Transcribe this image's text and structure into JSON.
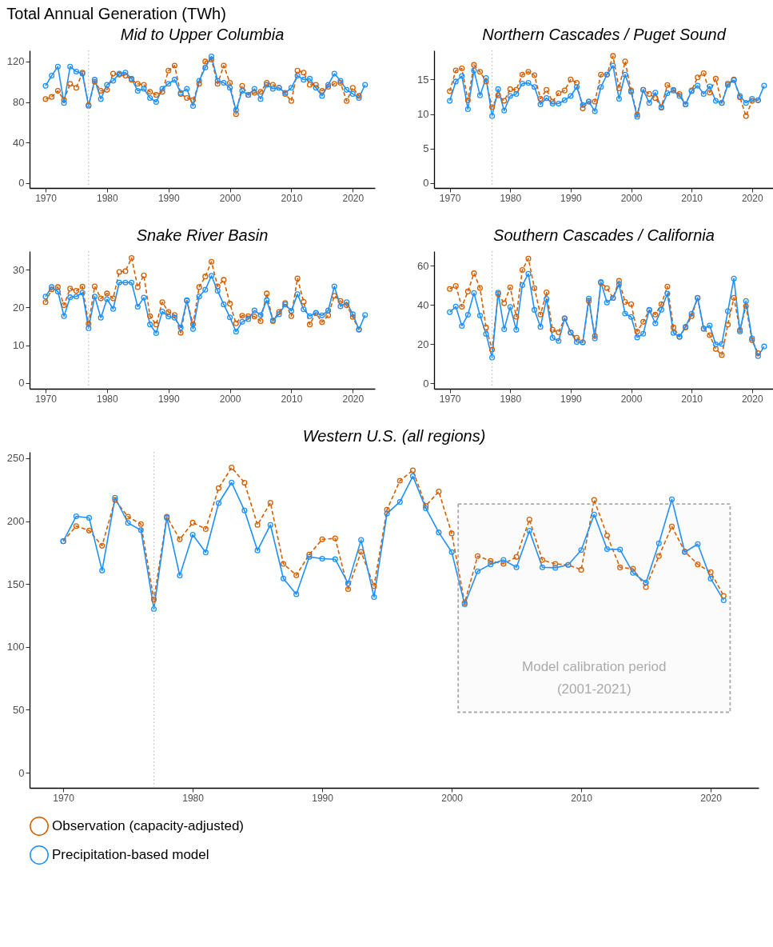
{
  "chart_data": [
    {
      "type": "line",
      "title": "Mid to Upper Columbia",
      "annotations": [
        "Total Annual Generation (TWh)"
      ],
      "x": [
        1970,
        1971,
        1972,
        1973,
        1974,
        1975,
        1976,
        1977,
        1978,
        1979,
        1980,
        1981,
        1982,
        1983,
        1984,
        1985,
        1986,
        1987,
        1988,
        1989,
        1990,
        1991,
        1992,
        1993,
        1994,
        1995,
        1996,
        1997,
        1998,
        1999,
        2000,
        2001,
        2002,
        2003,
        2004,
        2005,
        2006,
        2007,
        2008,
        2009,
        2010,
        2011,
        2012,
        2013,
        2014,
        2015,
        2016,
        2017,
        2018,
        2019,
        2020,
        2021,
        2022
      ],
      "xlim": [
        1967.4,
        2023.6
      ],
      "xticks": [
        1970,
        1980,
        1990,
        2000,
        2010,
        2020
      ],
      "ylim": [
        -5,
        131
      ],
      "yticks": [
        0,
        40,
        80,
        120
      ],
      "grid": false,
      "marker": "circle",
      "ref_lines": [
        {
          "axis": "x",
          "value": 1977,
          "color": "#bbbbbb",
          "line_style": "dotted"
        }
      ],
      "series": [
        {
          "color": "#d55e00",
          "line_style": "dashed",
          "x": [
            1970,
            1971,
            1972,
            1973,
            1974,
            1975,
            1976,
            1977,
            1978,
            1979,
            1980,
            1981,
            1982,
            1983,
            1984,
            1985,
            1986,
            1987,
            1988,
            1989,
            1990,
            1991,
            1992,
            1993,
            1994,
            1995,
            1996,
            1997,
            1998,
            1999,
            2000,
            2001,
            2002,
            2003,
            2004,
            2005,
            2006,
            2007,
            2008,
            2009,
            2010,
            2011,
            2012,
            2013,
            2014,
            2015,
            2016,
            2017,
            2018,
            2019,
            2020,
            2021
          ],
          "values": [
            83,
            85,
            91,
            82,
            98,
            94,
            109,
            77,
            100,
            91,
            92,
            108,
            107,
            106,
            102,
            98,
            97,
            90,
            87,
            90,
            111,
            116,
            88,
            84,
            82,
            98,
            120,
            122,
            98,
            116,
            99,
            68,
            96,
            87,
            89,
            90,
            99,
            97,
            94,
            88,
            81,
            111,
            109,
            97,
            97,
            91,
            95,
            98,
            99,
            81,
            94,
            86
          ]
        },
        {
          "color": "#1e90ff",
          "line_style": "solid",
          "values": [
            96,
            106,
            115,
            79,
            115,
            110,
            108,
            76,
            102,
            83,
            97,
            101,
            108,
            109,
            103,
            91,
            93,
            84,
            80,
            93,
            98,
            102,
            89,
            93,
            76,
            101,
            114,
            125,
            101,
            99,
            94,
            72,
            91,
            87,
            93,
            83,
            97,
            93,
            94,
            89,
            94,
            106,
            102,
            103,
            94,
            86,
            97,
            108,
            101,
            92,
            88,
            84,
            97
          ]
        }
      ]
    },
    {
      "type": "line",
      "title": "Northern Cascades / Puget Sound",
      "x": [
        1970,
        1971,
        1972,
        1973,
        1974,
        1975,
        1976,
        1977,
        1978,
        1979,
        1980,
        1981,
        1982,
        1983,
        1984,
        1985,
        1986,
        1987,
        1988,
        1989,
        1990,
        1991,
        1992,
        1993,
        1994,
        1995,
        1996,
        1997,
        1998,
        1999,
        2000,
        2001,
        2002,
        2003,
        2004,
        2005,
        2006,
        2007,
        2008,
        2009,
        2010,
        2011,
        2012,
        2013,
        2014,
        2015,
        2016,
        2017,
        2018,
        2019,
        2020,
        2021,
        2022
      ],
      "xlim": [
        1967.4,
        2023.6
      ],
      "xticks": [
        1970,
        1980,
        1990,
        2000,
        2010,
        2020
      ],
      "ylim": [
        -0.7,
        19.2
      ],
      "yticks": [
        0,
        5,
        10,
        15
      ],
      "grid": false,
      "marker": "circle",
      "ref_lines": [
        {
          "axis": "x",
          "value": 1977,
          "color": "#bbbbbb",
          "line_style": "dotted"
        }
      ],
      "series": [
        {
          "color": "#d55e00",
          "line_style": "dashed",
          "x": [
            1970,
            1971,
            1972,
            1973,
            1974,
            1975,
            1976,
            1977,
            1978,
            1979,
            1980,
            1981,
            1982,
            1983,
            1984,
            1985,
            1986,
            1987,
            1988,
            1989,
            1990,
            1991,
            1992,
            1993,
            1994,
            1995,
            1996,
            1997,
            1998,
            1999,
            2000,
            2001,
            2002,
            2003,
            2004,
            2005,
            2006,
            2007,
            2008,
            2009,
            2010,
            2011,
            2012,
            2013,
            2014,
            2015,
            2016,
            2017,
            2018,
            2019,
            2020,
            2021
          ],
          "values": [
            13.3,
            16.3,
            16.6,
            12.0,
            17.1,
            16.1,
            14.7,
            11.0,
            12.7,
            11.9,
            13.6,
            13.5,
            15.7,
            16.1,
            15.6,
            12.2,
            13.5,
            11.8,
            13.0,
            13.4,
            15.0,
            14.5,
            10.8,
            11.8,
            11.8,
            15.7,
            15.7,
            18.4,
            13.7,
            17.6,
            13.4,
            9.9,
            13.5,
            12.9,
            12.3,
            11.0,
            14.2,
            13.5,
            12.9,
            11.4,
            13.4,
            15.3,
            15.9,
            13.1,
            15.1,
            11.6,
            14.4,
            15.0,
            12.4,
            9.7,
            11.9,
            12.0
          ]
        },
        {
          "color": "#1e90ff",
          "line_style": "solid",
          "values": [
            11.9,
            14.7,
            15.5,
            10.7,
            16.3,
            12.7,
            15.2,
            9.7,
            13.6,
            10.5,
            12.6,
            12.9,
            14.4,
            14.5,
            13.9,
            11.4,
            12.3,
            11.5,
            11.5,
            12.0,
            12.6,
            13.9,
            11.3,
            11.8,
            10.4,
            13.9,
            15.7,
            17.0,
            12.2,
            15.7,
            13.2,
            9.6,
            13.5,
            11.6,
            13.1,
            10.9,
            13.0,
            13.4,
            12.6,
            11.4,
            13.3,
            14.1,
            12.9,
            14.0,
            11.9,
            11.6,
            14.2,
            14.9,
            12.6,
            11.6,
            12.2,
            12.0,
            14.1
          ]
        }
      ]
    },
    {
      "type": "line",
      "title": "Snake River Basin",
      "x": [
        1970,
        1971,
        1972,
        1973,
        1974,
        1975,
        1976,
        1977,
        1978,
        1979,
        1980,
        1981,
        1982,
        1983,
        1984,
        1985,
        1986,
        1987,
        1988,
        1989,
        1990,
        1991,
        1992,
        1993,
        1994,
        1995,
        1996,
        1997,
        1998,
        1999,
        2000,
        2001,
        2002,
        2003,
        2004,
        2005,
        2006,
        2007,
        2008,
        2009,
        2010,
        2011,
        2012,
        2013,
        2014,
        2015,
        2016,
        2017,
        2018,
        2019,
        2020,
        2021,
        2022
      ],
      "xlim": [
        1967.4,
        2023.6
      ],
      "xticks": [
        1970,
        1980,
        1990,
        2000,
        2010,
        2020
      ],
      "ylim": [
        -1.5,
        34.9
      ],
      "yticks": [
        0,
        10,
        20,
        30
      ],
      "grid": false,
      "marker": "circle",
      "ref_lines": [
        {
          "axis": "x",
          "value": 1977,
          "color": "#bbbbbb",
          "line_style": "dotted"
        }
      ],
      "series": [
        {
          "color": "#d55e00",
          "line_style": "dashed",
          "x": [
            1970,
            1971,
            1972,
            1973,
            1974,
            1975,
            1976,
            1977,
            1978,
            1979,
            1980,
            1981,
            1982,
            1983,
            1984,
            1985,
            1986,
            1987,
            1988,
            1989,
            1990,
            1991,
            1992,
            1993,
            1994,
            1995,
            1996,
            1997,
            1998,
            1999,
            2000,
            2001,
            2002,
            2003,
            2004,
            2005,
            2006,
            2007,
            2008,
            2009,
            2010,
            2011,
            2012,
            2013,
            2014,
            2015,
            2016,
            2017,
            2018,
            2019,
            2020,
            2021
          ],
          "values": [
            21.4,
            24.8,
            25.4,
            20.6,
            25.0,
            24.4,
            25.5,
            15.7,
            25.6,
            22.4,
            23.7,
            22.4,
            29.4,
            29.6,
            33.1,
            25.4,
            28.5,
            17.7,
            15.5,
            21.4,
            18.8,
            18.0,
            13.3,
            21.8,
            15.6,
            25.4,
            28.2,
            32.1,
            25.6,
            27.3,
            21.0,
            15.8,
            17.8,
            17.7,
            17.6,
            16.4,
            23.7,
            16.4,
            18.8,
            21.2,
            17.7,
            27.7,
            21.5,
            15.5,
            18.5,
            16.1,
            17.9,
            23.1,
            21.7,
            20.6,
            17.5,
            14.1
          ]
        },
        {
          "color": "#1e90ff",
          "line_style": "solid",
          "values": [
            22.9,
            25.4,
            24.2,
            17.7,
            22.7,
            22.9,
            23.9,
            14.5,
            22.9,
            17.3,
            22.2,
            19.6,
            26.6,
            26.6,
            26.6,
            20.2,
            22.6,
            15.5,
            13.2,
            18.9,
            17.6,
            17.3,
            14.7,
            21.9,
            14.3,
            22.9,
            24.7,
            28.4,
            24.4,
            20.8,
            17.4,
            13.6,
            16.2,
            16.9,
            19.2,
            18.0,
            21.9,
            16.6,
            18.2,
            20.8,
            19.1,
            23.5,
            19.5,
            17.7,
            18.6,
            17.9,
            19.2,
            25.6,
            20.3,
            21.4,
            18.2,
            14.2,
            18.0
          ]
        }
      ]
    },
    {
      "type": "line",
      "title": "Southern Cascades / California",
      "x": [
        1970,
        1971,
        1972,
        1973,
        1974,
        1975,
        1976,
        1977,
        1978,
        1979,
        1980,
        1981,
        1982,
        1983,
        1984,
        1985,
        1986,
        1987,
        1988,
        1989,
        1990,
        1991,
        1992,
        1993,
        1994,
        1995,
        1996,
        1997,
        1998,
        1999,
        2000,
        2001,
        2002,
        2003,
        2004,
        2005,
        2006,
        2007,
        2008,
        2009,
        2010,
        2011,
        2012,
        2013,
        2014,
        2015,
        2016,
        2017,
        2018,
        2019,
        2020,
        2021,
        2022
      ],
      "xlim": [
        1967.4,
        2023.6
      ],
      "xticks": [
        1970,
        1980,
        1990,
        2000,
        2010,
        2020
      ],
      "ylim": [
        -2.8,
        67.5
      ],
      "yticks": [
        0,
        20,
        40,
        60
      ],
      "grid": false,
      "marker": "circle",
      "ref_lines": [
        {
          "axis": "x",
          "value": 1977,
          "color": "#bbbbbb",
          "line_style": "dotted"
        }
      ],
      "series": [
        {
          "color": "#d55e00",
          "line_style": "dashed",
          "x": [
            1970,
            1971,
            1972,
            1973,
            1974,
            1975,
            1976,
            1977,
            1978,
            1979,
            1980,
            1981,
            1982,
            1983,
            1984,
            1985,
            1986,
            1987,
            1988,
            1989,
            1990,
            1991,
            1992,
            1993,
            1994,
            1995,
            1996,
            1997,
            1998,
            1999,
            2000,
            2001,
            2002,
            2003,
            2004,
            2005,
            2006,
            2007,
            2008,
            2009,
            2010,
            2011,
            2012,
            2013,
            2014,
            2015,
            2016,
            2017,
            2018,
            2019,
            2020,
            2021
          ],
          "values": [
            48.2,
            49.7,
            39.1,
            46.9,
            56.2,
            48.7,
            28.5,
            17.2,
            45.6,
            40.9,
            49.0,
            34.0,
            57.9,
            63.7,
            48.6,
            35.1,
            46.4,
            27.3,
            26.0,
            33.1,
            25.8,
            23.2,
            20.9,
            42.1,
            24.2,
            51.4,
            48.6,
            43.6,
            52.3,
            41.5,
            40.4,
            26.4,
            31.4,
            37.3,
            35.1,
            40.4,
            49.4,
            28.5,
            23.8,
            28.5,
            34.3,
            43.6,
            27.9,
            24.6,
            17.5,
            14.4,
            30.0,
            43.7,
            27.2,
            39.4,
            22.0,
            15.4
          ]
        },
        {
          "color": "#1e90ff",
          "line_style": "solid",
          "values": [
            36.3,
            39.2,
            29.3,
            35.0,
            46.1,
            34.6,
            25.2,
            13.1,
            46.3,
            27.6,
            39.0,
            27.3,
            50.1,
            55.9,
            37.5,
            28.8,
            43.1,
            23.2,
            21.6,
            33.1,
            26.0,
            21.1,
            20.9,
            43.3,
            22.9,
            51.7,
            41.2,
            43.6,
            50.6,
            35.6,
            33.9,
            23.4,
            25.3,
            37.5,
            30.6,
            37.6,
            45.8,
            25.7,
            23.7,
            28.9,
            35.5,
            43.7,
            27.9,
            29.5,
            19.9,
            20.1,
            36.8,
            53.5,
            26.4,
            42.0,
            22.9,
            13.9,
            18.8
          ]
        }
      ]
    },
    {
      "type": "line",
      "title": "Western U.S. (all regions)",
      "x": [
        1970,
        1971,
        1972,
        1973,
        1974,
        1975,
        1976,
        1977,
        1978,
        1979,
        1980,
        1981,
        1982,
        1983,
        1984,
        1985,
        1986,
        1987,
        1988,
        1989,
        1990,
        1991,
        1992,
        1993,
        1994,
        1995,
        1996,
        1997,
        1998,
        1999,
        2000,
        2001,
        2002,
        2003,
        2004,
        2005,
        2006,
        2007,
        2008,
        2009,
        2010,
        2011,
        2012,
        2013,
        2014,
        2015,
        2016,
        2017,
        2018,
        2019,
        2020,
        2021
      ],
      "xlim": [
        1967.4,
        2023.7
      ],
      "xticks": [
        1970,
        1980,
        1990,
        2000,
        2010,
        2020
      ],
      "ylim": [
        -12,
        255
      ],
      "yticks": [
        0,
        50,
        100,
        150,
        200,
        250
      ],
      "grid": false,
      "marker": "circle",
      "legend": "bottom",
      "ref_lines": [
        {
          "axis": "x",
          "value": 1977,
          "color": "#bbbbbb",
          "line_style": "dotted"
        }
      ],
      "bands": [
        {
          "axis": "x",
          "from": 2000.5,
          "to": 2021.5,
          "label": "Model calibration period\n(2001-2021)",
          "color": "#aaaaaa"
        }
      ],
      "series": [
        {
          "name": "Observation (capacity-adjusted)",
          "color": "#d55e00",
          "line_style": "dashed",
          "values": [
            184,
            196,
            192.5,
            180.4,
            216.8,
            203.5,
            197.6,
            137.7,
            203.5,
            185.5,
            198.8,
            193.7,
            226.2,
            242.6,
            230.5,
            197,
            214.6,
            166,
            157,
            173.5,
            185.5,
            186.3,
            146,
            175.5,
            148.4,
            209,
            232.1,
            240.3,
            212.1,
            223.5,
            190.2,
            135,
            172.2,
            168.3,
            166,
            171.5,
            201.2,
            169.1,
            166,
            165.2,
            161.3,
            216.8,
            188.6,
            163.2,
            162.1,
            147.6,
            172.2,
            195.7,
            175.8,
            165.6,
            159.4,
            140.6
          ]
        },
        {
          "name": "Precipitation-based model",
          "color": "#1e90ff",
          "line_style": "solid",
          "values": [
            184,
            203.8,
            202.6,
            160.7,
            218.6,
            198.6,
            192.8,
            130.1,
            202.6,
            156.8,
            189.2,
            175.1,
            214.3,
            230.7,
            208.4,
            176.7,
            197,
            154.4,
            141.9,
            171.6,
            170.1,
            169.7,
            150.5,
            185,
            139.6,
            206,
            215.3,
            235.7,
            210.2,
            191,
            175.4,
            133.9,
            160.1,
            165.6,
            169.1,
            163.3,
            192.3,
            163.3,
            162.9,
            165.2,
            177,
            205.2,
            177.7,
            177.4,
            158.9,
            151.1,
            182.4,
            217.3,
            175.4,
            181.7,
            154.3,
            137.1
          ]
        }
      ]
    }
  ]
}
